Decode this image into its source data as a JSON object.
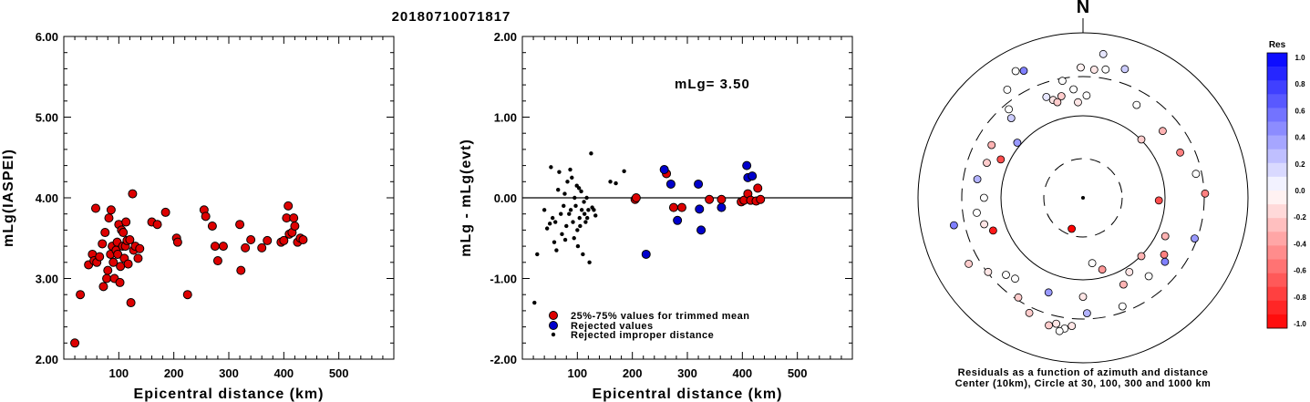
{
  "title": "20180710071817",
  "chart_data": [
    {
      "type": "scatter",
      "ylabel": "mLg(IASPEI)",
      "xlabel": "Epicentral distance (km)",
      "xlim": [
        0,
        600
      ],
      "ylim": [
        2.0,
        6.0
      ],
      "xticks": [
        "100",
        "200",
        "300",
        "400",
        "500"
      ],
      "yticks": [
        "2.00",
        "3.00",
        "4.00",
        "5.00",
        "6.00"
      ],
      "colors": {
        "point": "#dd0000"
      },
      "points": [
        [
          20,
          2.2
        ],
        [
          30,
          2.8
        ],
        [
          45,
          3.17
        ],
        [
          52,
          3.3
        ],
        [
          55,
          3.22
        ],
        [
          58,
          3.87
        ],
        [
          60,
          3.2
        ],
        [
          65,
          3.27
        ],
        [
          70,
          3.43
        ],
        [
          72,
          2.9
        ],
        [
          75,
          3.57
        ],
        [
          78,
          3.0
        ],
        [
          80,
          3.1
        ],
        [
          82,
          3.75
        ],
        [
          85,
          3.3
        ],
        [
          86,
          3.85
        ],
        [
          88,
          3.4
        ],
        [
          90,
          3.2
        ],
        [
          92,
          3.0
        ],
        [
          95,
          3.35
        ],
        [
          97,
          3.45
        ],
        [
          98,
          3.3
        ],
        [
          100,
          3.67
        ],
        [
          102,
          2.95
        ],
        [
          103,
          3.15
        ],
        [
          105,
          3.6
        ],
        [
          107,
          3.4
        ],
        [
          108,
          3.57
        ],
        [
          110,
          3.25
        ],
        [
          112,
          3.4
        ],
        [
          113,
          3.7
        ],
        [
          115,
          3.47
        ],
        [
          117,
          3.18
        ],
        [
          120,
          3.48
        ],
        [
          122,
          2.7
        ],
        [
          125,
          4.05
        ],
        [
          127,
          3.35
        ],
        [
          130,
          3.4
        ],
        [
          135,
          3.25
        ],
        [
          138,
          3.37
        ],
        [
          160,
          3.7
        ],
        [
          170,
          3.67
        ],
        [
          185,
          3.82
        ],
        [
          205,
          3.5
        ],
        [
          207,
          3.45
        ],
        [
          225,
          2.8
        ],
        [
          255,
          3.85
        ],
        [
          258,
          3.77
        ],
        [
          270,
          3.65
        ],
        [
          275,
          3.4
        ],
        [
          280,
          3.22
        ],
        [
          290,
          3.4
        ],
        [
          320,
          3.67
        ],
        [
          322,
          3.1
        ],
        [
          330,
          3.38
        ],
        [
          340,
          3.48
        ],
        [
          360,
          3.38
        ],
        [
          370,
          3.47
        ],
        [
          395,
          3.45
        ],
        [
          400,
          3.47
        ],
        [
          405,
          3.75
        ],
        [
          408,
          3.9
        ],
        [
          410,
          3.55
        ],
        [
          415,
          3.57
        ],
        [
          418,
          3.75
        ],
        [
          420,
          3.65
        ],
        [
          425,
          3.45
        ],
        [
          430,
          3.5
        ],
        [
          435,
          3.48
        ]
      ]
    },
    {
      "type": "scatter",
      "ylabel": "mLg - mLg(evt)",
      "xlabel": "Epicentral distance (km)",
      "xlim": [
        0,
        600
      ],
      "ylim": [
        -2.0,
        2.0
      ],
      "xticks": [
        "100",
        "200",
        "300",
        "400",
        "500"
      ],
      "yticks": [
        "-2.00",
        "-1.00",
        "0.00",
        "1.00",
        "2.00"
      ],
      "annotation": "mLg= 3.50",
      "colors": {
        "trimmed": "#dd0000",
        "rejected": "#0000cc",
        "improper": "#000000"
      },
      "legend": [
        {
          "key": "trimmed",
          "label": "25%-75% values for trimmed mean"
        },
        {
          "key": "rejected",
          "label": "Rejected values"
        },
        {
          "key": "improper",
          "label": "Rejected improper distance"
        }
      ],
      "trimmed": [
        [
          205,
          -0.02
        ],
        [
          207,
          0.0
        ],
        [
          262,
          0.3
        ],
        [
          275,
          -0.12
        ],
        [
          290,
          -0.12
        ],
        [
          340,
          -0.02
        ],
        [
          362,
          -0.02
        ],
        [
          398,
          -0.05
        ],
        [
          403,
          -0.03
        ],
        [
          410,
          0.05
        ],
        [
          415,
          -0.03
        ],
        [
          425,
          -0.04
        ],
        [
          428,
          0.12
        ],
        [
          433,
          -0.02
        ]
      ],
      "rejected": [
        [
          225,
          -0.7
        ],
        [
          258,
          0.35
        ],
        [
          270,
          0.17
        ],
        [
          282,
          -0.28
        ],
        [
          320,
          0.17
        ],
        [
          322,
          -0.14
        ],
        [
          325,
          -0.4
        ],
        [
          362,
          -0.12
        ],
        [
          408,
          0.4
        ],
        [
          410,
          0.25
        ],
        [
          418,
          0.27
        ]
      ],
      "improper": [
        [
          22,
          -1.3
        ],
        [
          27,
          -0.7
        ],
        [
          40,
          -0.15
        ],
        [
          45,
          -0.38
        ],
        [
          50,
          -0.32
        ],
        [
          52,
          0.38
        ],
        [
          55,
          -0.25
        ],
        [
          58,
          -0.55
        ],
        [
          60,
          -0.3
        ],
        [
          62,
          -0.65
        ],
        [
          65,
          0.1
        ],
        [
          67,
          0.32
        ],
        [
          70,
          -0.2
        ],
        [
          72,
          -0.45
        ],
        [
          75,
          -0.1
        ],
        [
          77,
          0.05
        ],
        [
          78,
          -0.52
        ],
        [
          80,
          -0.35
        ],
        [
          82,
          0.2
        ],
        [
          85,
          -0.2
        ],
        [
          87,
          0.35
        ],
        [
          88,
          -0.15
        ],
        [
          90,
          0.25
        ],
        [
          92,
          -0.3
        ],
        [
          94,
          -0.5
        ],
        [
          95,
          0.0
        ],
        [
          97,
          -0.1
        ],
        [
          99,
          0.15
        ],
        [
          100,
          -0.4
        ],
        [
          101,
          -0.6
        ],
        [
          103,
          0.12
        ],
        [
          104,
          -0.25
        ],
        [
          105,
          -0.35
        ],
        [
          107,
          0.08
        ],
        [
          108,
          -0.15
        ],
        [
          110,
          -0.7
        ],
        [
          112,
          -0.05
        ],
        [
          113,
          -0.2
        ],
        [
          115,
          -0.3
        ],
        [
          117,
          0.0
        ],
        [
          118,
          -0.25
        ],
        [
          120,
          -0.15
        ],
        [
          122,
          -0.8
        ],
        [
          125,
          0.55
        ],
        [
          127,
          -0.12
        ],
        [
          130,
          -0.15
        ],
        [
          133,
          -0.22
        ],
        [
          160,
          0.2
        ],
        [
          170,
          0.18
        ],
        [
          185,
          0.33
        ]
      ]
    },
    {
      "type": "polar-scatter",
      "north_label": "N",
      "caption_lines": [
        "Residuals as a function of azimuth and distance",
        "Center (10km), Circle at 30, 100, 300 and 1000 km"
      ],
      "colorbar": {
        "title": "Res",
        "ticks": [
          "1.0",
          "0.8",
          "0.6",
          "0.4",
          "0.2",
          "0.0",
          "-0.2",
          "-0.4",
          "-0.6",
          "-0.8",
          "-1.0"
        ],
        "positive_color": "#0000ff",
        "negative_color": "#ff0000"
      },
      "points": [
        [
          350,
          0.72,
          0.0
        ],
        [
          359,
          0.79,
          -0.05
        ],
        [
          5,
          0.78,
          -0.1
        ],
        [
          10,
          0.79,
          0.0
        ],
        [
          18,
          0.82,
          0.2
        ],
        [
          30,
          0.65,
          0.0
        ],
        [
          45,
          0.5,
          -0.2
        ],
        [
          50,
          0.63,
          -0.3
        ],
        [
          65,
          0.65,
          -0.5
        ],
        [
          78,
          0.7,
          0.0
        ],
        [
          88,
          0.74,
          -0.5
        ],
        [
          92,
          0.46,
          -0.7
        ],
        [
          110,
          0.72,
          0.4
        ],
        [
          115,
          0.55,
          -0.3
        ],
        [
          125,
          0.6,
          -0.5
        ],
        [
          128,
          0.63,
          0.5
        ],
        [
          135,
          0.5,
          -0.3
        ],
        [
          140,
          0.62,
          0.0
        ],
        [
          148,
          0.53,
          -0.1
        ],
        [
          155,
          0.58,
          -0.3
        ],
        [
          160,
          0.7,
          0.0
        ],
        [
          165,
          0.45,
          -0.4
        ],
        [
          172,
          0.4,
          0.0
        ],
        [
          178,
          0.7,
          0.3
        ],
        [
          180,
          0.6,
          -0.1
        ],
        [
          185,
          0.78,
          -0.1
        ],
        [
          188,
          0.8,
          0.0
        ],
        [
          190,
          0.82,
          0.0
        ],
        [
          192,
          0.78,
          -0.1
        ],
        [
          195,
          0.8,
          -0.2
        ],
        [
          200,
          0.61,
          0.4
        ],
        [
          205,
          0.77,
          -0.2
        ],
        [
          213,
          0.72,
          -0.2
        ],
        [
          220,
          0.64,
          0.0
        ],
        [
          225,
          0.66,
          0.0
        ],
        [
          232,
          0.73,
          -0.1
        ],
        [
          240,
          0.8,
          -0.2
        ],
        [
          250,
          0.58,
          -0.9
        ],
        [
          255,
          0.62,
          -0.1
        ],
        [
          258,
          0.8,
          0.5
        ],
        [
          262,
          0.65,
          0.0
        ],
        [
          270,
          0.6,
          0.0
        ],
        [
          280,
          0.65,
          0.3
        ],
        [
          290,
          0.62,
          -0.2
        ],
        [
          295,
          0.55,
          -0.7
        ],
        [
          300,
          0.64,
          -0.3
        ],
        [
          310,
          0.52,
          0.4
        ],
        [
          318,
          0.65,
          0.2
        ],
        [
          320,
          0.7,
          0.0
        ],
        [
          325,
          0.8,
          0.0
        ],
        [
          332,
          0.87,
          0.0
        ],
        [
          335,
          0.85,
          0.5
        ],
        [
          340,
          0.65,
          0.1
        ],
        [
          343,
          0.62,
          -0.1
        ],
        [
          345,
          0.6,
          -0.2
        ],
        [
          348,
          0.63,
          -0.2
        ],
        [
          355,
          0.66,
          0.0
        ],
        [
          357,
          0.58,
          -0.1
        ],
        [
          2,
          0.62,
          0.0
        ],
        [
          8,
          0.88,
          0.1
        ],
        [
          200,
          0.2,
          -1.0
        ]
      ]
    }
  ]
}
